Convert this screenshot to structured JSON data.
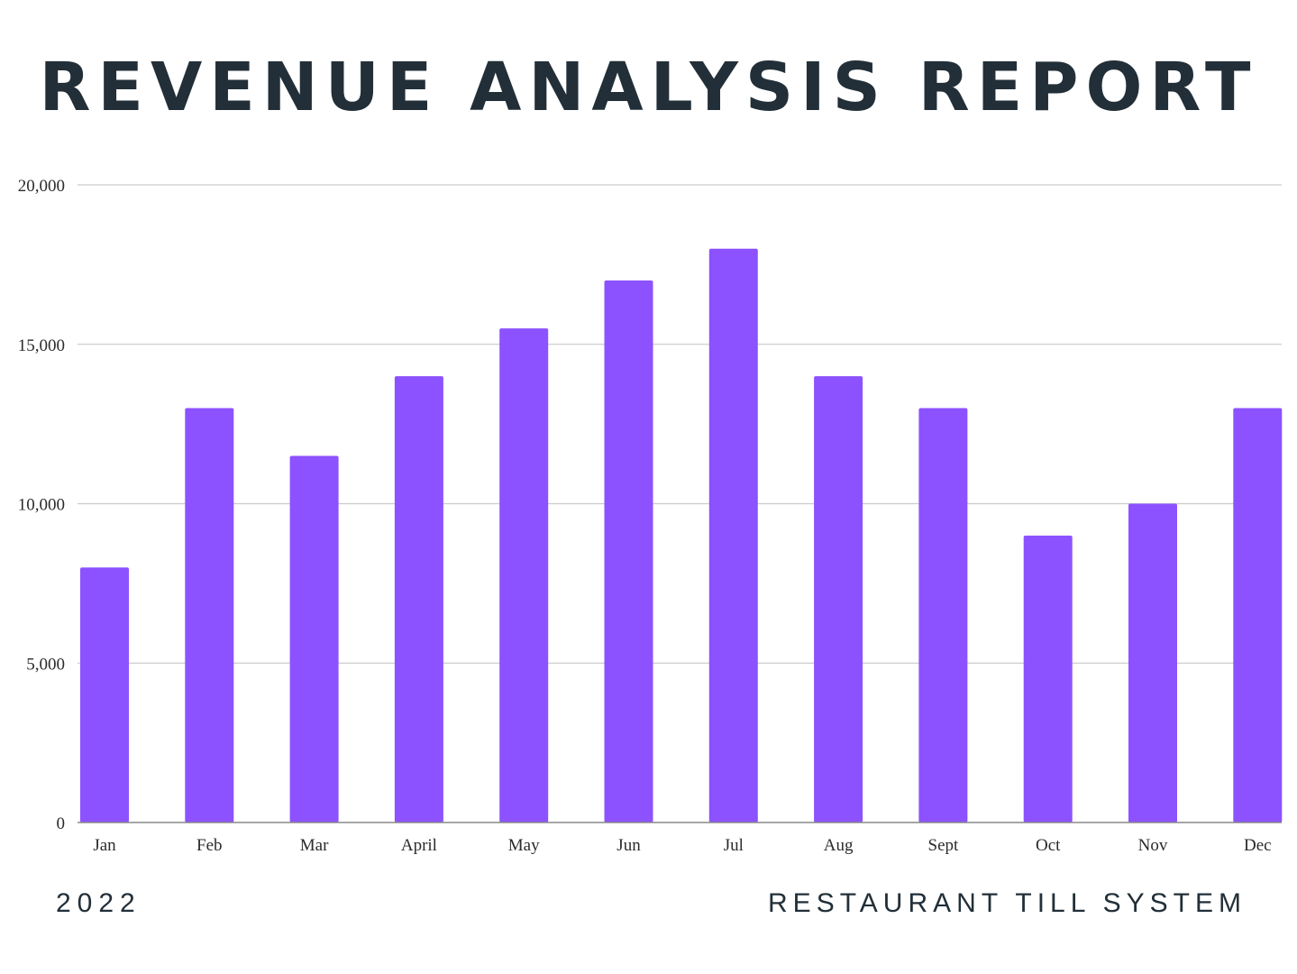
{
  "title": "REVENUE ANALYSIS REPORT",
  "footer": {
    "year": "2022",
    "system_name": "RESTAURANT TILL SYSTEM"
  },
  "colors": {
    "bar": "#8c52ff",
    "title": "#222f38",
    "grid": "#cccccc",
    "axis": "#888888"
  },
  "chart_data": {
    "type": "bar",
    "categories": [
      "Jan",
      "Feb",
      "Mar",
      "April",
      "May",
      "Jun",
      "Jul",
      "Aug",
      "Sept",
      "Oct",
      "Nov",
      "Dec"
    ],
    "values": [
      8000,
      13000,
      11500,
      14000,
      15500,
      17000,
      18000,
      14000,
      13000,
      9000,
      10000,
      13000
    ],
    "yticks": [
      "0",
      "5,000",
      "10,000",
      "15,000",
      "20,000"
    ],
    "ytick_values": [
      0,
      5000,
      10000,
      15000,
      20000
    ],
    "ylim": [
      0,
      20000
    ],
    "grid": true,
    "legend": "none"
  }
}
